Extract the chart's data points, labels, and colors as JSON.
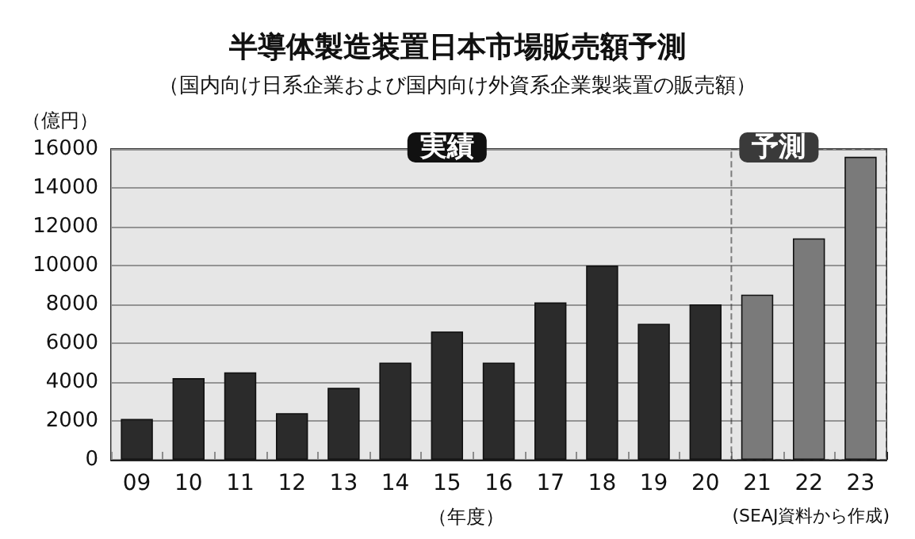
{
  "chart_data": {
    "type": "bar",
    "title": "半導体製造装置日本市場販売額予測",
    "subtitle": "（国内向け日系企業および国内向け外資系企業製装置の販売額）",
    "ylabel": "（億円）",
    "xlabel": "（年度）",
    "annotations": [
      "(SEAJ資料から作成)"
    ],
    "categories": [
      "09",
      "10",
      "11",
      "12",
      "13",
      "14",
      "15",
      "16",
      "17",
      "18",
      "19",
      "20",
      "21",
      "22",
      "23"
    ],
    "values": [
      2100,
      4200,
      4500,
      2400,
      3700,
      5000,
      6600,
      5000,
      8100,
      10000,
      7000,
      8000,
      8500,
      11400,
      15600
    ],
    "colors": [
      "#2b2b2b",
      "#2b2b2b",
      "#2b2b2b",
      "#2b2b2b",
      "#2b2b2b",
      "#2b2b2b",
      "#2b2b2b",
      "#2b2b2b",
      "#2b2b2b",
      "#2b2b2b",
      "#2b2b2b",
      "#2b2b2b",
      "#7a7a7a",
      "#7a7a7a",
      "#7a7a7a"
    ],
    "bands": [
      {
        "axis": "x",
        "from": "09",
        "to": "20",
        "label": "実績",
        "color": "#d6d6d6"
      },
      {
        "axis": "x",
        "from": "21",
        "to": "23",
        "label": "予測",
        "color": "#d6d6d6"
      }
    ],
    "ylim": [
      0,
      16000
    ],
    "yticks": [
      0,
      2000,
      4000,
      6000,
      8000,
      10000,
      12000,
      14000,
      16000
    ],
    "grid": "y"
  }
}
